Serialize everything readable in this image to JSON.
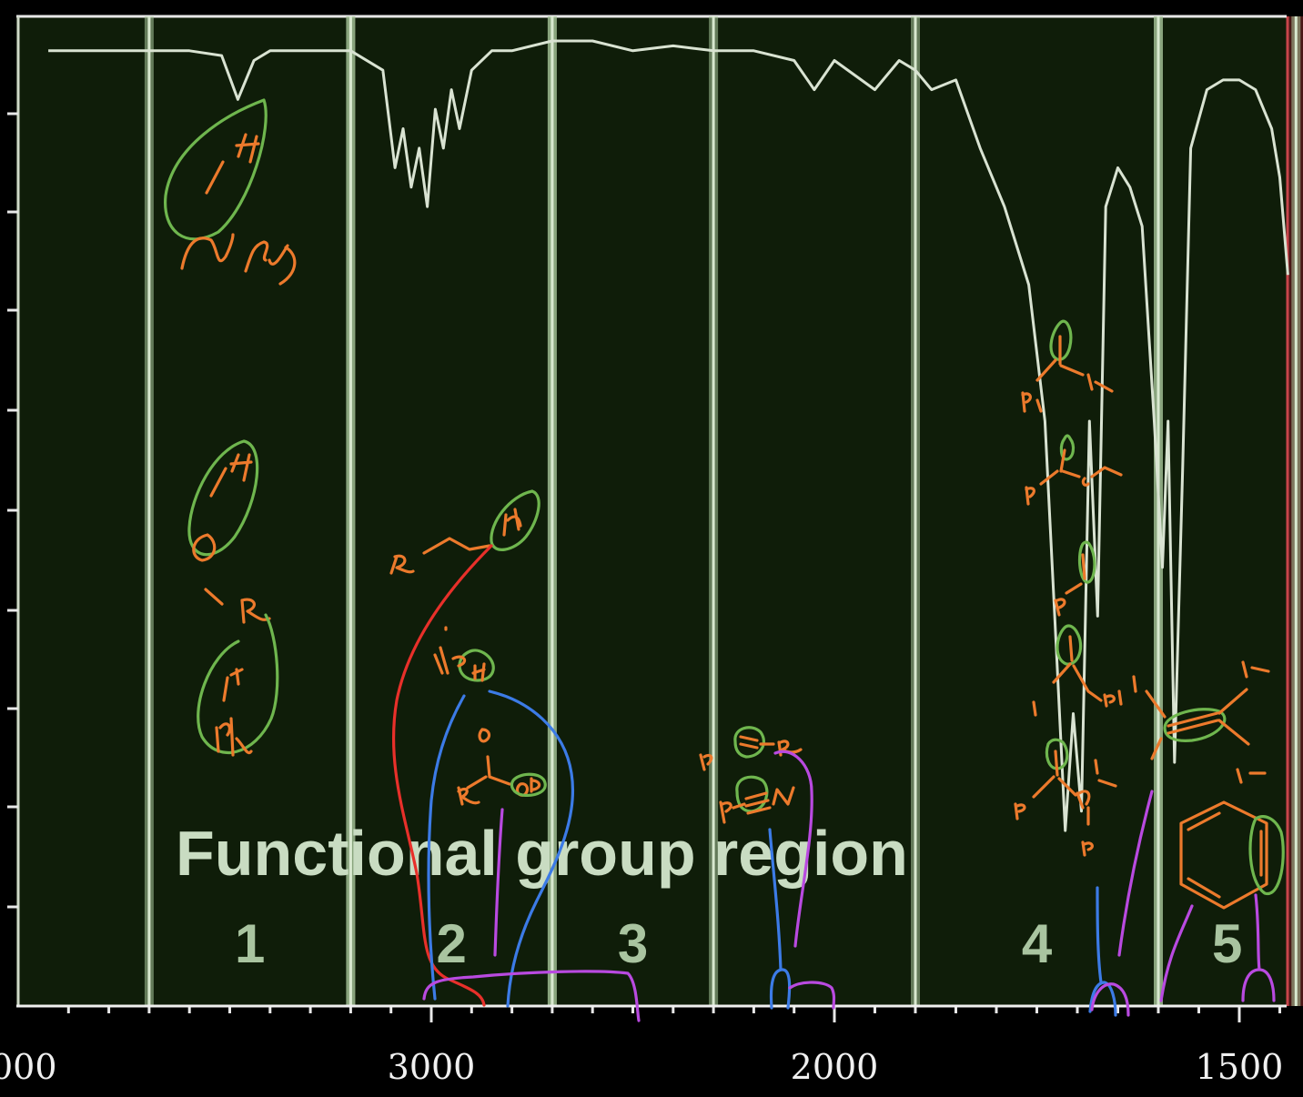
{
  "chart_data": {
    "type": "line",
    "title": "",
    "xlabel": "",
    "ylabel": "",
    "overlay_title": "Functional group region",
    "x_ticks": [
      "000",
      "3000",
      "2000",
      "1500"
    ],
    "x_range": [
      4000,
      1400
    ],
    "x_reversed": true,
    "regions": [
      {
        "label": "1",
        "from": 3700,
        "to": 3200
      },
      {
        "label": "2",
        "from": 3200,
        "to": 2700
      },
      {
        "label": "3",
        "from": 2700,
        "to": 2300
      },
      {
        "label": "4",
        "from": 1900,
        "to": 1600
      },
      {
        "label": "5",
        "from": 1600,
        "to": 1430
      }
    ],
    "series": [
      {
        "x": [
          3950,
          3800,
          3700,
          3600,
          3520,
          3480,
          3440,
          3400,
          3300,
          3200,
          3120,
          3090,
          3070,
          3050,
          3030,
          3010,
          2990,
          2970,
          2950,
          2930,
          2900,
          2850,
          2800,
          2700,
          2600,
          2500,
          2400,
          2300,
          2200,
          2100,
          2050,
          2000,
          1950,
          1920,
          1900,
          1880,
          1850,
          1820,
          1790,
          1760,
          1740,
          1725,
          1715,
          1705,
          1695,
          1685,
          1675,
          1665,
          1650,
          1635,
          1620,
          1605,
          1595,
          1588,
          1580,
          1570,
          1560,
          1540,
          1520,
          1500,
          1480,
          1460,
          1450,
          1440
        ],
        "y": [
          98,
          98,
          98,
          98,
          97.5,
          93,
          97,
          98,
          98,
          98,
          96,
          86,
          90,
          84,
          88,
          82,
          92,
          88,
          94,
          90,
          96,
          98,
          98,
          99,
          99,
          98,
          98.5,
          98,
          98,
          97,
          94,
          97,
          94,
          97,
          96,
          94,
          95,
          88,
          82,
          74,
          60,
          35,
          18,
          30,
          20,
          60,
          40,
          82,
          86,
          84,
          80,
          60,
          45,
          60,
          25,
          55,
          88,
          94,
          95,
          95,
          94,
          90,
          85,
          75
        ]
      }
    ]
  }
}
